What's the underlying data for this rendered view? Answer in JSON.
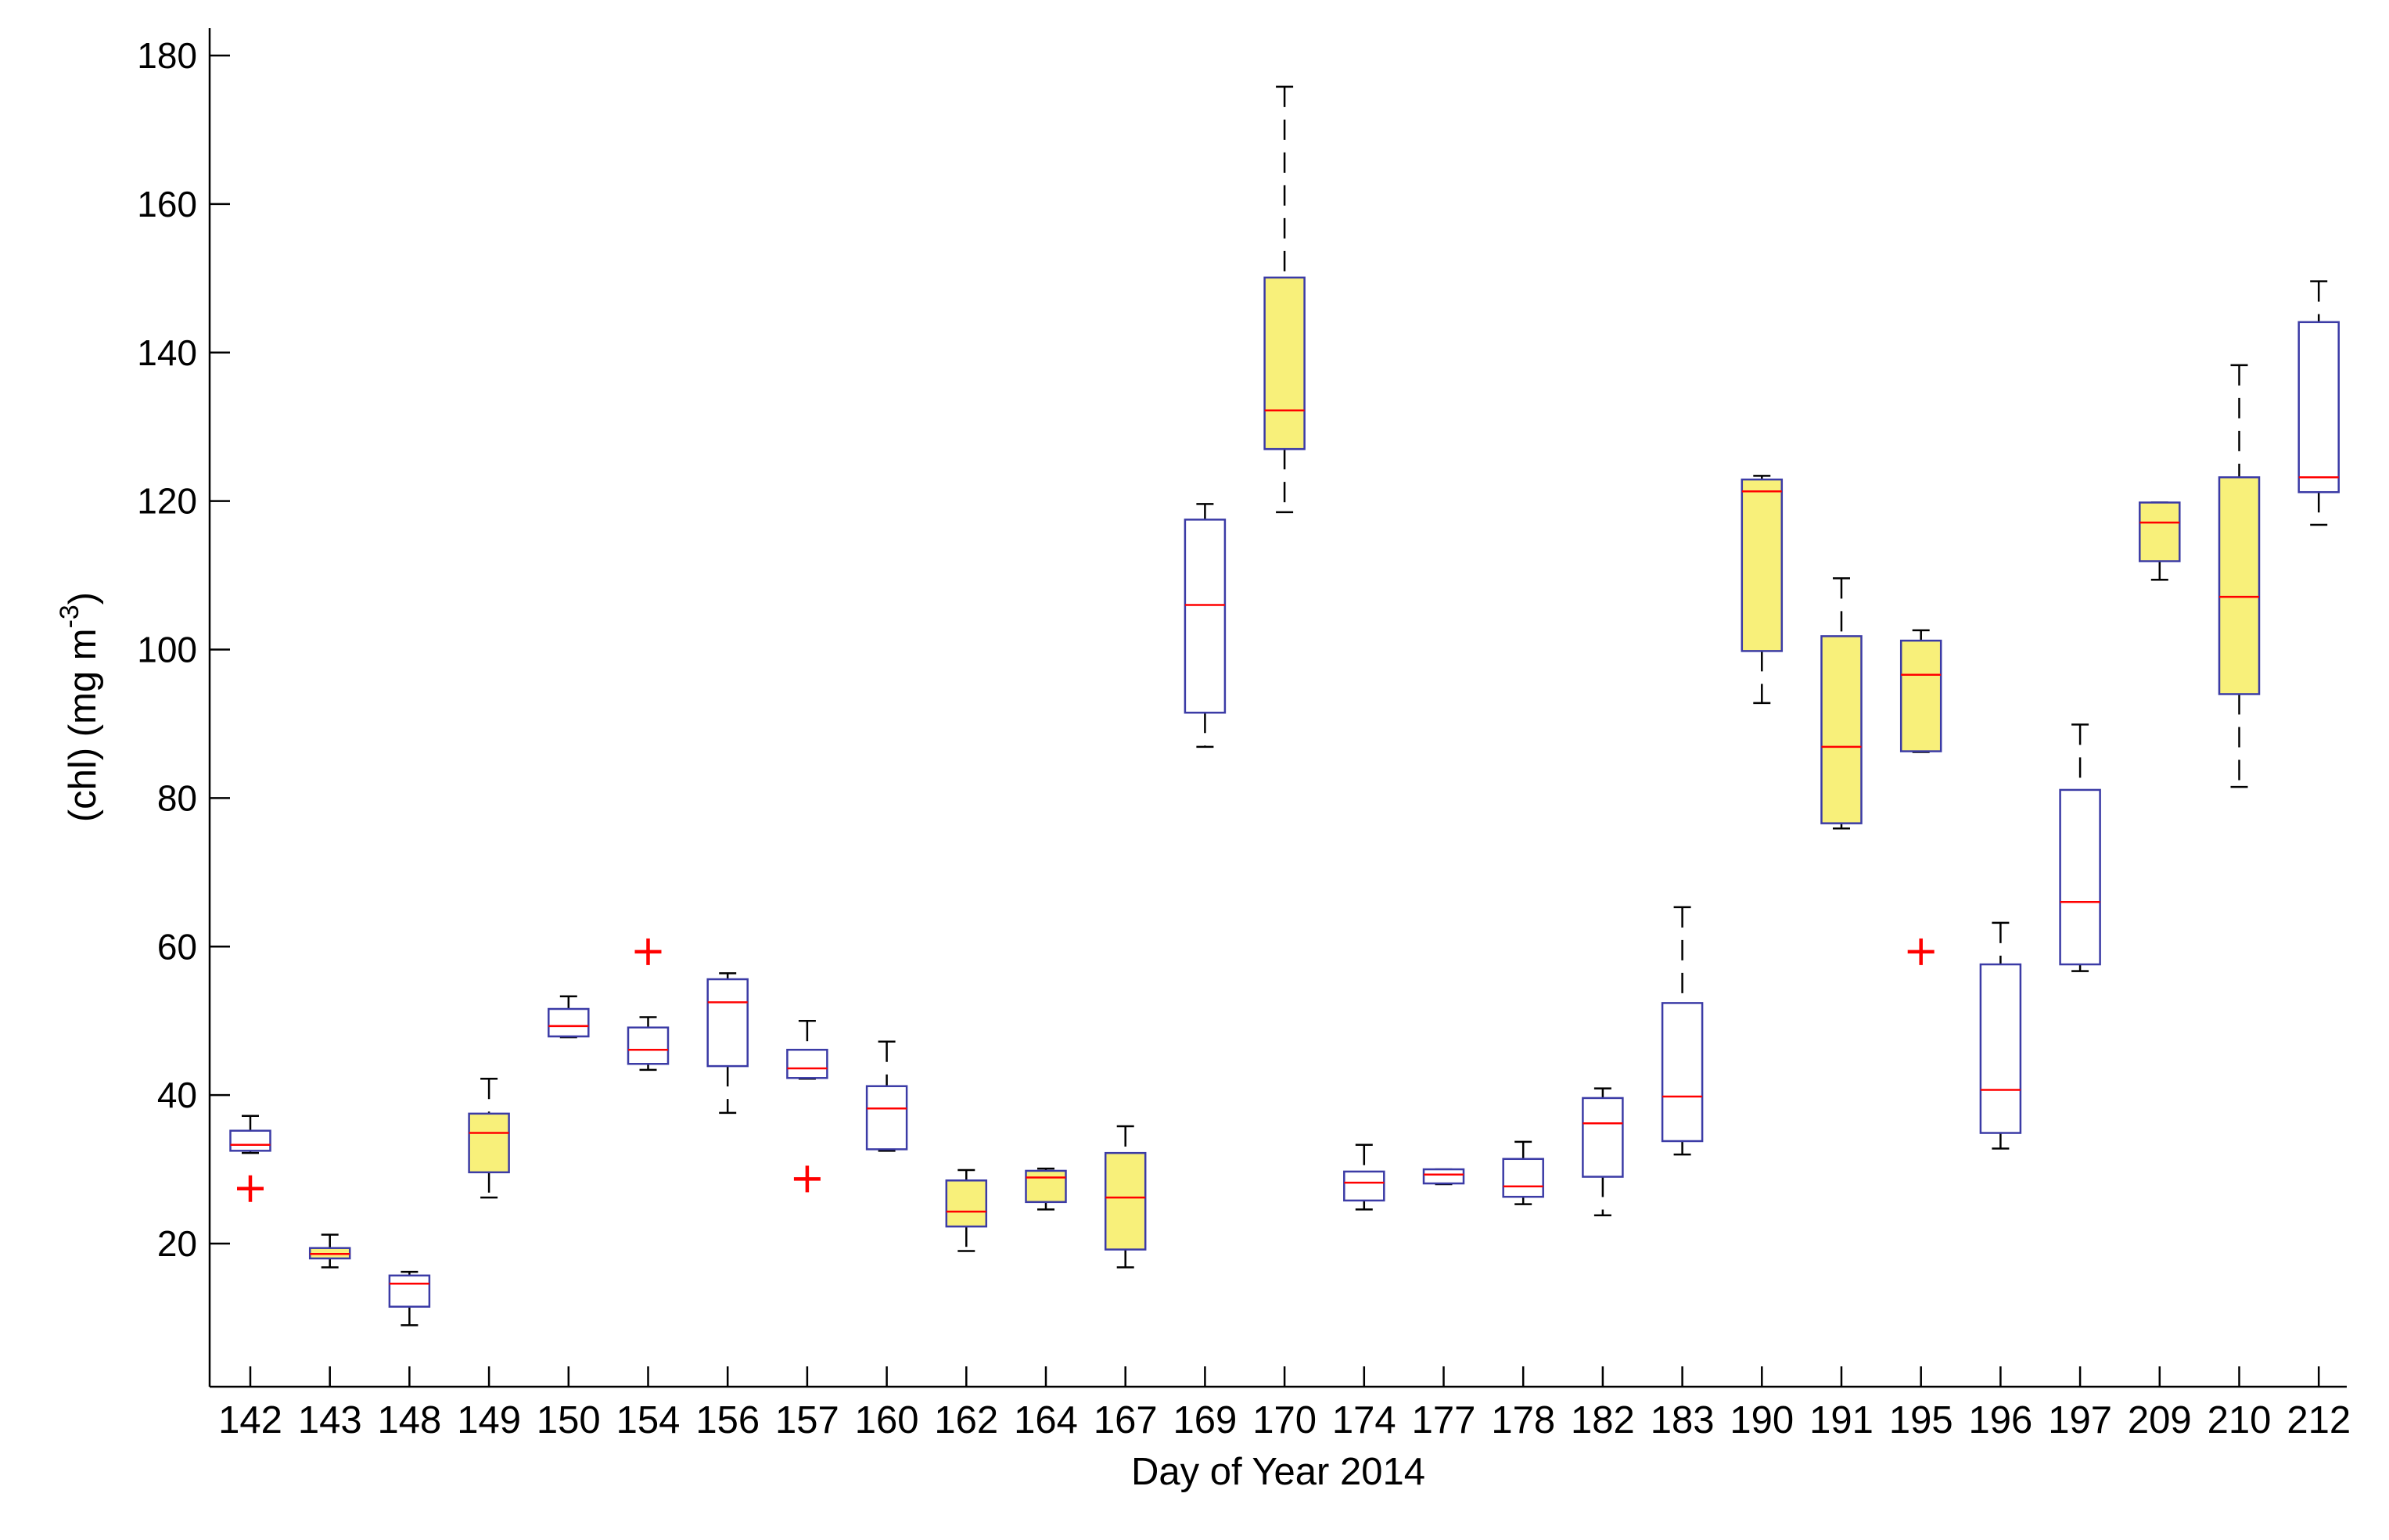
{
  "chart_data": {
    "type": "box",
    "title": "",
    "xlabel": "Day of Year 2014",
    "ylabel": {
      "main": "(chl) (mg m",
      "superscript": "-3",
      "close": ")"
    },
    "ylim": [
      0,
      182
    ],
    "yticks": [
      20,
      40,
      60,
      80,
      100,
      120,
      140,
      160,
      180
    ],
    "grid": false,
    "legend": "none",
    "colors": {
      "box_edge": "#3b3ba6",
      "median": "#ff0000",
      "whisker": "#000000",
      "outlier": "#ff0000",
      "highlight_fill": "#f8f07a",
      "plain_fill": "#ffffff"
    },
    "categories": [
      "142",
      "143",
      "148",
      "149",
      "150",
      "154",
      "156",
      "157",
      "160",
      "162",
      "164",
      "167",
      "169",
      "170",
      "174",
      "177",
      "178",
      "182",
      "183",
      "190",
      "191",
      "195",
      "196",
      "197",
      "209",
      "210",
      "212"
    ],
    "boxes": [
      {
        "day": "142",
        "whisker_low": 32.2,
        "q1": 32.5,
        "median": 33.3,
        "q3": 35.2,
        "whisker_high": 37.2,
        "highlight": false,
        "outliers": [
          27.4
        ]
      },
      {
        "day": "143",
        "whisker_low": 16.8,
        "q1": 18.0,
        "median": 18.6,
        "q3": 19.4,
        "whisker_high": 21.2,
        "highlight": true,
        "outliers": []
      },
      {
        "day": "148",
        "whisker_low": 9.0,
        "q1": 11.5,
        "median": 14.6,
        "q3": 15.7,
        "whisker_high": 16.2,
        "highlight": false,
        "outliers": []
      },
      {
        "day": "149",
        "whisker_low": 26.2,
        "q1": 29.6,
        "median": 34.9,
        "q3": 37.5,
        "whisker_high": 42.2,
        "highlight": true,
        "outliers": []
      },
      {
        "day": "150",
        "whisker_low": 47.8,
        "q1": 47.9,
        "median": 49.3,
        "q3": 51.6,
        "whisker_high": 53.3,
        "highlight": false,
        "outliers": []
      },
      {
        "day": "154",
        "whisker_low": 43.4,
        "q1": 44.2,
        "median": 46.1,
        "q3": 49.1,
        "whisker_high": 50.5,
        "highlight": false,
        "outliers": [
          59.3
        ]
      },
      {
        "day": "156",
        "whisker_low": 37.6,
        "q1": 43.9,
        "median": 52.5,
        "q3": 55.6,
        "whisker_high": 56.4,
        "highlight": false,
        "outliers": []
      },
      {
        "day": "157",
        "whisker_low": 42.2,
        "q1": 42.3,
        "median": 43.6,
        "q3": 46.1,
        "whisker_high": 50.0,
        "highlight": false,
        "outliers": [
          28.7
        ]
      },
      {
        "day": "160",
        "whisker_low": 32.5,
        "q1": 32.7,
        "median": 38.2,
        "q3": 41.2,
        "whisker_high": 47.2,
        "highlight": false,
        "outliers": []
      },
      {
        "day": "162",
        "whisker_low": 19.0,
        "q1": 22.3,
        "median": 24.3,
        "q3": 28.5,
        "whisker_high": 29.9,
        "highlight": true,
        "outliers": []
      },
      {
        "day": "164",
        "whisker_low": 24.6,
        "q1": 25.6,
        "median": 28.9,
        "q3": 29.8,
        "whisker_high": 30.1,
        "highlight": true,
        "outliers": []
      },
      {
        "day": "167",
        "whisker_low": 16.8,
        "q1": 19.2,
        "median": 26.2,
        "q3": 32.2,
        "whisker_high": 35.8,
        "highlight": true,
        "outliers": []
      },
      {
        "day": "169",
        "whisker_low": 86.9,
        "q1": 91.5,
        "median": 106.0,
        "q3": 117.5,
        "whisker_high": 119.6,
        "highlight": false,
        "outliers": []
      },
      {
        "day": "170",
        "whisker_low": 118.5,
        "q1": 127.0,
        "median": 132.2,
        "q3": 150.1,
        "whisker_high": 175.8,
        "highlight": true,
        "outliers": []
      },
      {
        "day": "174",
        "whisker_low": 24.6,
        "q1": 25.8,
        "median": 28.2,
        "q3": 29.7,
        "whisker_high": 33.3,
        "highlight": false,
        "outliers": []
      },
      {
        "day": "177",
        "whisker_low": 28.0,
        "q1": 28.1,
        "median": 29.3,
        "q3": 30.0,
        "whisker_high": 30.0,
        "highlight": false,
        "outliers": []
      },
      {
        "day": "178",
        "whisker_low": 25.3,
        "q1": 26.3,
        "median": 27.7,
        "q3": 31.4,
        "whisker_high": 33.7,
        "highlight": false,
        "outliers": []
      },
      {
        "day": "182",
        "whisker_low": 23.8,
        "q1": 29.0,
        "median": 36.2,
        "q3": 39.6,
        "whisker_high": 40.9,
        "highlight": false,
        "outliers": []
      },
      {
        "day": "183",
        "whisker_low": 32.0,
        "q1": 33.8,
        "median": 39.8,
        "q3": 52.4,
        "whisker_high": 65.3,
        "highlight": false,
        "outliers": []
      },
      {
        "day": "190",
        "whisker_low": 92.8,
        "q1": 99.8,
        "median": 121.3,
        "q3": 122.9,
        "whisker_high": 123.4,
        "highlight": true,
        "outliers": []
      },
      {
        "day": "191",
        "whisker_low": 75.9,
        "q1": 76.6,
        "median": 86.9,
        "q3": 101.8,
        "whisker_high": 109.6,
        "highlight": true,
        "outliers": []
      },
      {
        "day": "195",
        "whisker_low": 86.2,
        "q1": 86.3,
        "median": 96.6,
        "q3": 101.2,
        "whisker_high": 102.6,
        "highlight": true,
        "outliers": [
          59.3
        ]
      },
      {
        "day": "196",
        "whisker_low": 32.8,
        "q1": 34.9,
        "median": 40.7,
        "q3": 57.6,
        "whisker_high": 63.2,
        "highlight": false,
        "outliers": []
      },
      {
        "day": "197",
        "whisker_low": 56.7,
        "q1": 57.6,
        "median": 66.0,
        "q3": 81.1,
        "whisker_high": 89.9,
        "highlight": false,
        "outliers": []
      },
      {
        "day": "209",
        "whisker_low": 109.4,
        "q1": 111.9,
        "median": 117.1,
        "q3": 119.8,
        "whisker_high": 119.8,
        "highlight": true,
        "outliers": []
      },
      {
        "day": "210",
        "whisker_low": 81.5,
        "q1": 94.0,
        "median": 107.1,
        "q3": 123.2,
        "whisker_high": 138.3,
        "highlight": true,
        "outliers": []
      },
      {
        "day": "212",
        "whisker_low": 116.8,
        "q1": 121.2,
        "median": 123.2,
        "q3": 144.1,
        "whisker_high": 149.6,
        "highlight": false,
        "outliers": []
      }
    ]
  }
}
